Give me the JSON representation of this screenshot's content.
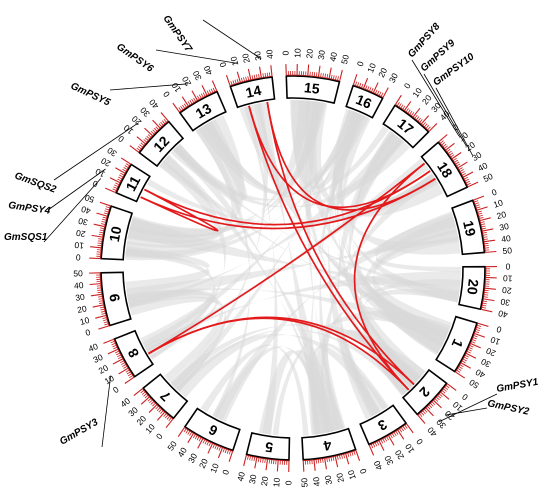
{
  "diagram": {
    "type": "circos",
    "chromosomes": [
      {
        "label": "1",
        "ticks": [
          "0",
          "10",
          "20",
          "30",
          "40",
          "50"
        ]
      },
      {
        "label": "2",
        "ticks": [
          "0",
          "10",
          "20",
          "30",
          "40"
        ]
      },
      {
        "label": "3",
        "ticks": [
          "0",
          "10",
          "20",
          "30",
          "40"
        ]
      },
      {
        "label": "4",
        "ticks": [
          "0",
          "10",
          "20",
          "30",
          "40",
          "50"
        ]
      },
      {
        "label": "5",
        "ticks": [
          "0",
          "10",
          "20",
          "30",
          "40"
        ]
      },
      {
        "label": "6",
        "ticks": [
          "0",
          "10",
          "20",
          "30",
          "40",
          "50"
        ]
      },
      {
        "label": "7",
        "ticks": [
          "0",
          "10",
          "20",
          "30",
          "40"
        ]
      },
      {
        "label": "8",
        "ticks": [
          "0",
          "10",
          "20",
          "30",
          "40"
        ]
      },
      {
        "label": "9",
        "ticks": [
          "0",
          "10",
          "20",
          "30",
          "40",
          "50"
        ]
      },
      {
        "label": "10",
        "ticks": [
          "0",
          "10",
          "20",
          "30",
          "40",
          "50"
        ]
      },
      {
        "label": "11",
        "ticks": [
          "0",
          "10",
          "20",
          "30"
        ]
      },
      {
        "label": "12",
        "ticks": [
          "0",
          "10",
          "20",
          "30",
          "40"
        ]
      },
      {
        "label": "13",
        "ticks": [
          "0",
          "10",
          "20",
          "30",
          "40"
        ]
      },
      {
        "label": "14",
        "ticks": [
          "0",
          "10",
          "20",
          "30",
          "40"
        ]
      },
      {
        "label": "15",
        "ticks": [
          "0",
          "10",
          "20",
          "30",
          "40",
          "50"
        ]
      },
      {
        "label": "16",
        "ticks": [
          "0",
          "10",
          "20",
          "30"
        ]
      },
      {
        "label": "17",
        "ticks": [
          "0",
          "10",
          "20",
          "30",
          "40"
        ]
      },
      {
        "label": "18",
        "ticks": [
          "0",
          "10",
          "20",
          "30",
          "40",
          "50"
        ]
      },
      {
        "label": "19",
        "ticks": [
          "0",
          "10",
          "20",
          "30",
          "40",
          "50"
        ]
      },
      {
        "label": "20",
        "ticks": [
          "0",
          "10",
          "20",
          "30",
          "40"
        ]
      }
    ],
    "genes": [
      {
        "name": "GmPSY1",
        "chromosome": "2"
      },
      {
        "name": "GmPSY2",
        "chromosome": "2"
      },
      {
        "name": "GmPSY3",
        "chromosome": "8"
      },
      {
        "name": "GmPSY4",
        "chromosome": "11"
      },
      {
        "name": "GmSQS1",
        "chromosome": "11"
      },
      {
        "name": "GmSQS2",
        "chromosome": "12"
      },
      {
        "name": "GmPSY5",
        "chromosome": "13"
      },
      {
        "name": "GmPSY6",
        "chromosome": "14"
      },
      {
        "name": "GmPSY7",
        "chromosome": "14"
      },
      {
        "name": "GmPSY8",
        "chromosome": "18"
      },
      {
        "name": "GmPSY9",
        "chromosome": "18"
      },
      {
        "name": "GmPSY10",
        "chromosome": "18"
      }
    ],
    "colors": {
      "link": "#e31a1c",
      "ribbon": "#d9d9d9",
      "tick": "#cc2020"
    }
  }
}
